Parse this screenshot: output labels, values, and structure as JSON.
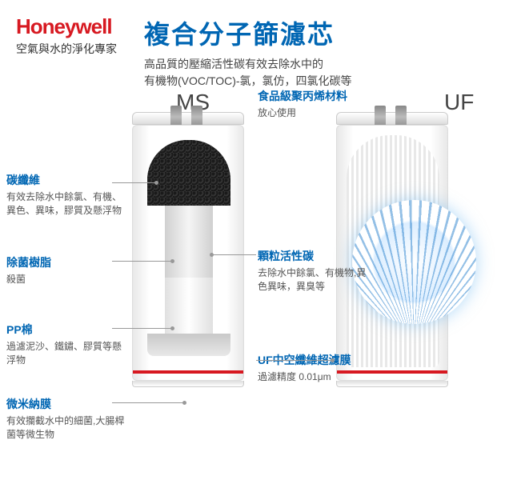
{
  "header": {
    "brand": "Honeywell",
    "tagline": "空氣與水的淨化專家",
    "main_title": "複合分子篩濾芯",
    "subtitle_line1": "高品質的壓縮活性碳有效去除水中的",
    "subtitle_line2": "有機物(VOC/TOC)-氯，氯仿，四氯化碳等"
  },
  "filters": {
    "ms_label": "MS",
    "uf_label": "UF"
  },
  "callouts": {
    "c1": {
      "title": "碳纖維",
      "desc": "有效去除水中餘氯、有機、異色、異味，膠質及懸浮物"
    },
    "c2": {
      "title": "除菌樹脂",
      "desc": "殺菌"
    },
    "c3": {
      "title": "PP棉",
      "desc": "過濾泥沙、鐵鏽、膠質等懸浮物"
    },
    "c4": {
      "title": "微米納膜",
      "desc": "有效攔截水中的細菌,大腸桿菌等微生物"
    },
    "c5": {
      "title": "食品級聚丙烯材料",
      "desc": "放心使用"
    },
    "c6": {
      "title": "顆粒活性碳",
      "desc": "去除水中餘氯、有機物,異色異味，異臭等"
    },
    "c7": {
      "title": "UF中空纖維超濾膜",
      "desc": "過濾精度 0.01μm"
    }
  },
  "colors": {
    "brand_red": "#d71921",
    "accent_blue": "#0066b3",
    "text_dark": "#333333",
    "text_gray": "#555555"
  }
}
